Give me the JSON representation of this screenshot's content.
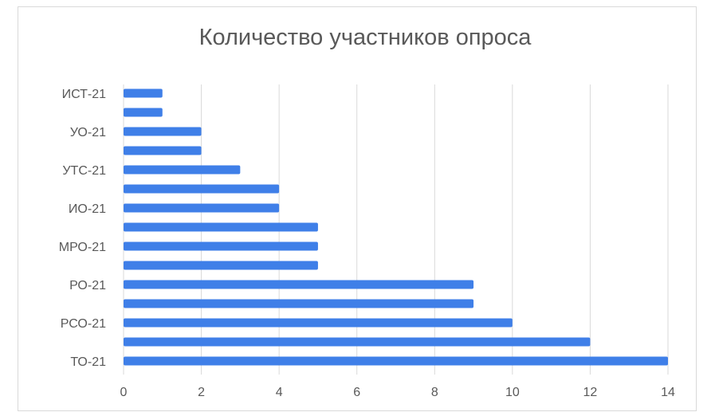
{
  "chart_data": {
    "type": "bar",
    "orientation": "horizontal",
    "title": "Количество участников опроса",
    "categories": [
      "ИСТ-21",
      "",
      "УО-21",
      "",
      "УТС-21",
      "",
      "ИО-21",
      "",
      "МРО-21",
      "",
      "РО-21",
      "",
      "РСО-21",
      "",
      "ТО-21"
    ],
    "values": [
      1,
      1,
      2,
      2,
      3,
      4,
      4,
      5,
      5,
      5,
      9,
      9,
      10,
      12,
      14
    ],
    "xlim": [
      0,
      14
    ],
    "xticks": [
      "0",
      "2",
      "4",
      "6",
      "8",
      "10",
      "12",
      "14"
    ],
    "grid": true,
    "bar_color": "#3f7fe8"
  }
}
